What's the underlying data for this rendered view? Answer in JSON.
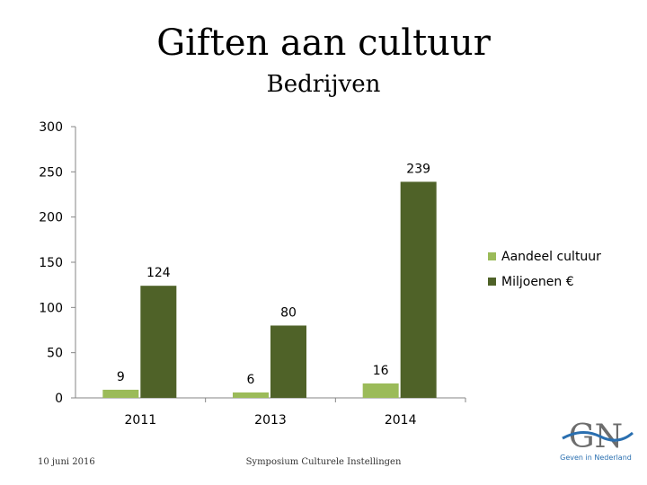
{
  "chart_data": {
    "type": "bar",
    "title": "Giften aan cultuur",
    "subtitle": "Bedrijven",
    "categories": [
      "2011",
      "2013",
      "2014"
    ],
    "series": [
      {
        "name": "Aandeel cultuur",
        "values": [
          9,
          6,
          16
        ],
        "color": "#9bbb59"
      },
      {
        "name": "Miljoenen €",
        "values": [
          124,
          80,
          239
        ],
        "color": "#4f6228"
      }
    ],
    "ylim": [
      0,
      300
    ],
    "yticks": [
      "0",
      "50",
      "100",
      "150",
      "200",
      "250",
      "300"
    ],
    "grid": false,
    "legend": "right"
  },
  "footer": {
    "date": "10 juni 2016",
    "center": "Symposium Culturele Instellingen",
    "logo_text": "GN",
    "logo_sub": "Geven in Nederland"
  }
}
